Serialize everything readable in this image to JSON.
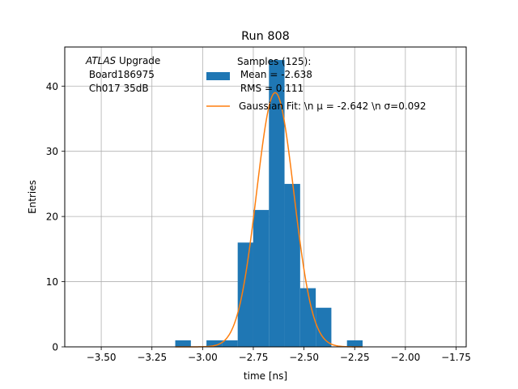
{
  "chart_data": {
    "type": "bar",
    "title": "Run 808",
    "xlabel": "time [ns]",
    "ylabel": "Entries",
    "xlim": [
      -3.68,
      -1.7
    ],
    "ylim": [
      0,
      46
    ],
    "xticks": [
      -3.5,
      -3.25,
      -3.0,
      -2.75,
      -2.5,
      -2.25,
      -2.0,
      -1.75
    ],
    "xtick_labels": [
      "−3.50",
      "−3.25",
      "−3.00",
      "−2.75",
      "−2.50",
      "−2.25",
      "−2.00",
      "−1.75"
    ],
    "yticks": [
      0,
      10,
      20,
      30,
      40
    ],
    "ytick_labels": [
      "0",
      "10",
      "20",
      "30",
      "40"
    ],
    "grid": true,
    "bins": {
      "edges": [
        -3.135,
        -3.058,
        -2.981,
        -2.904,
        -2.827,
        -2.75,
        -2.673,
        -2.596,
        -2.519,
        -2.442,
        -2.365,
        -2.288,
        -2.211
      ],
      "counts": [
        1,
        0,
        1,
        1,
        16,
        21,
        44,
        25,
        9,
        6,
        0,
        1
      ]
    },
    "gaussian_fit": {
      "mu": -2.642,
      "sigma": 0.092,
      "amplitude": 39
    },
    "annotation": {
      "line1_italic": "ATLAS",
      "line1_rest": " Upgrade",
      "line2": " Board186975",
      "line3": " Ch017 35dB"
    },
    "legend": {
      "position": "top-center",
      "hist_label_lines": [
        "Samples (125):",
        " Mean = -2.638",
        " RMS = 0.111"
      ],
      "fit_label": "Gaussian Fit: \\n μ = -2.642 \\n σ=0.092"
    },
    "colors": {
      "hist": "#1f77b4",
      "fit": "#ff7f0e",
      "grid": "#b0b0b0"
    }
  }
}
